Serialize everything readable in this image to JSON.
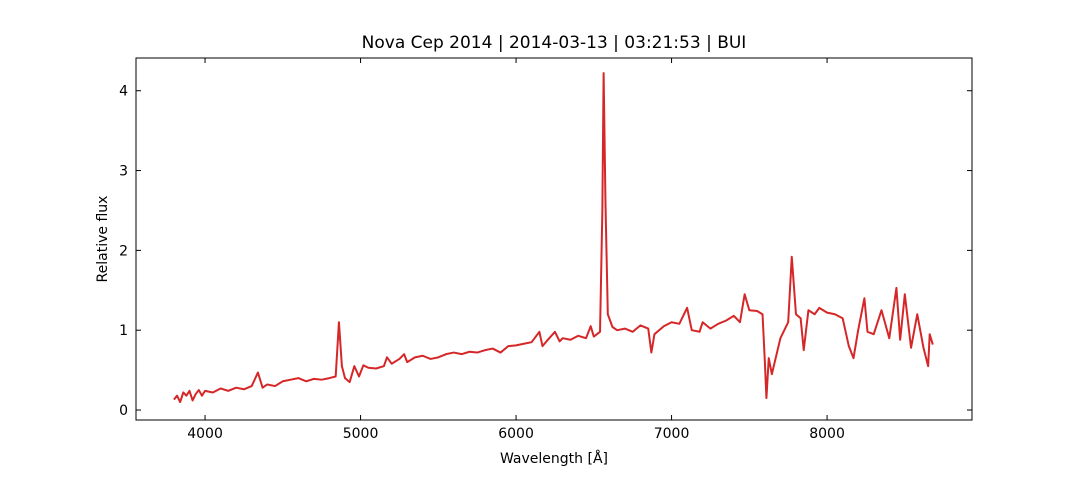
{
  "chart_data": {
    "type": "line",
    "title": "Nova Cep 2014 | 2014-03-13 | 03:21:53 | BUI",
    "x_label": "Wavelength [Å]",
    "y_label": "Relative flux",
    "xlim": [
      3556,
      8932
    ],
    "ylim": [
      -0.125,
      4.41
    ],
    "xticks": [
      4000,
      5000,
      6000,
      7000,
      8000
    ],
    "yticks": [
      0,
      1,
      2,
      3,
      4
    ],
    "grid": false,
    "series": [
      {
        "name": "Nova Cep 2014",
        "color": "#d62728",
        "x": [
          3800,
          3820,
          3840,
          3860,
          3880,
          3900,
          3920,
          3940,
          3960,
          3980,
          4000,
          4050,
          4100,
          4150,
          4200,
          4250,
          4300,
          4340,
          4370,
          4400,
          4450,
          4500,
          4550,
          4600,
          4650,
          4700,
          4750,
          4800,
          4840,
          4861,
          4880,
          4900,
          4930,
          4960,
          4990,
          5018,
          5050,
          5100,
          5150,
          5170,
          5200,
          5250,
          5280,
          5300,
          5350,
          5400,
          5450,
          5500,
          5550,
          5600,
          5650,
          5700,
          5750,
          5800,
          5850,
          5900,
          5950,
          6000,
          6050,
          6100,
          6150,
          6170,
          6200,
          6250,
          6280,
          6300,
          6350,
          6400,
          6450,
          6480,
          6500,
          6540,
          6555,
          6563,
          6575,
          6590,
          6620,
          6650,
          6700,
          6750,
          6800,
          6850,
          6870,
          6890,
          6950,
          7000,
          7050,
          7100,
          7130,
          7180,
          7200,
          7250,
          7300,
          7350,
          7400,
          7440,
          7470,
          7500,
          7550,
          7585,
          7600,
          7610,
          7625,
          7645,
          7700,
          7750,
          7773,
          7800,
          7830,
          7850,
          7880,
          7920,
          7950,
          8000,
          8050,
          8100,
          8140,
          8170,
          8200,
          8240,
          8260,
          8300,
          8350,
          8400,
          8446,
          8470,
          8500,
          8540,
          8580,
          8620,
          8650,
          8660,
          8680
        ],
        "values": [
          0.13,
          0.18,
          0.1,
          0.22,
          0.18,
          0.24,
          0.12,
          0.2,
          0.25,
          0.18,
          0.24,
          0.22,
          0.27,
          0.24,
          0.28,
          0.26,
          0.3,
          0.47,
          0.28,
          0.32,
          0.3,
          0.36,
          0.38,
          0.4,
          0.36,
          0.39,
          0.38,
          0.4,
          0.42,
          1.1,
          0.55,
          0.4,
          0.35,
          0.55,
          0.42,
          0.56,
          0.53,
          0.52,
          0.55,
          0.66,
          0.58,
          0.64,
          0.7,
          0.6,
          0.66,
          0.68,
          0.64,
          0.66,
          0.7,
          0.72,
          0.7,
          0.73,
          0.72,
          0.75,
          0.77,
          0.72,
          0.8,
          0.81,
          0.83,
          0.85,
          0.98,
          0.8,
          0.87,
          0.98,
          0.86,
          0.9,
          0.88,
          0.93,
          0.9,
          1.05,
          0.92,
          0.98,
          2.5,
          4.22,
          2.6,
          1.2,
          1.04,
          1.0,
          1.02,
          0.98,
          1.06,
          1.02,
          0.72,
          0.95,
          1.05,
          1.1,
          1.08,
          1.28,
          1.0,
          0.98,
          1.1,
          1.02,
          1.08,
          1.12,
          1.18,
          1.1,
          1.45,
          1.25,
          1.24,
          1.2,
          0.6,
          0.15,
          0.65,
          0.45,
          0.9,
          1.1,
          1.92,
          1.2,
          1.15,
          0.75,
          1.25,
          1.2,
          1.28,
          1.22,
          1.2,
          1.15,
          0.8,
          0.65,
          1.0,
          1.4,
          0.98,
          0.95,
          1.25,
          0.9,
          1.53,
          0.88,
          1.45,
          0.78,
          1.2,
          0.78,
          0.55,
          0.95,
          0.82
        ]
      }
    ]
  }
}
